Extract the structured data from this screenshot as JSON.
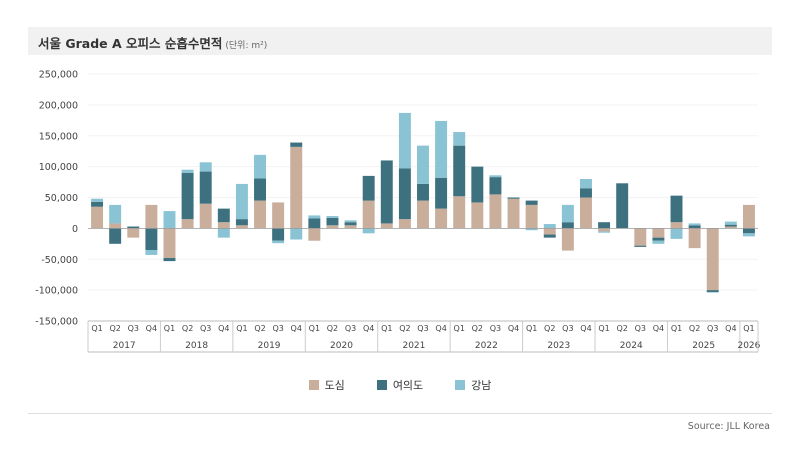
{
  "title": "서울 Grade A 오피스 순흡수면적",
  "unit_label": "(단위: m²)",
  "source": "Source: JLL Korea",
  "chart_data": {
    "type": "bar",
    "stacked": true,
    "ylim": [
      -150000,
      250000
    ],
    "y_ticks": [
      250000,
      200000,
      150000,
      100000,
      50000,
      0,
      -50000,
      -100000,
      -150000
    ],
    "y_tick_labels": [
      "250,000",
      "200,000",
      "150,000",
      "100,000",
      "50,000",
      "0",
      "-50,000",
      "-100,000",
      "-150,000"
    ],
    "grid": true,
    "legend_position": "bottom-center",
    "quarter_labels": [
      "Q1",
      "Q2",
      "Q3",
      "Q4",
      "Q1",
      "Q2",
      "Q3",
      "Q4",
      "Q1",
      "Q2",
      "Q3",
      "Q4",
      "Q1",
      "Q2",
      "Q3",
      "Q4",
      "Q1",
      "Q2",
      "Q3",
      "Q4",
      "Q1",
      "Q2",
      "Q3",
      "Q4",
      "Q1",
      "Q2",
      "Q3",
      "Q4",
      "Q1",
      "Q2",
      "Q3",
      "Q4",
      "Q1",
      "Q2",
      "Q3",
      "Q4",
      "Q1"
    ],
    "year_labels": [
      "2017",
      "2018",
      "2019",
      "2020",
      "2021",
      "2022",
      "2023",
      "2024",
      "2025",
      "2026"
    ],
    "series": [
      {
        "name": "도심",
        "color": "#c9ae9c",
        "values": [
          35000,
          8000,
          -15000,
          38000,
          -48000,
          15000,
          40000,
          10000,
          5000,
          45000,
          42000,
          132000,
          -20000,
          5000,
          5000,
          45000,
          8000,
          15000,
          45000,
          32000,
          52000,
          42000,
          55000,
          48000,
          38000,
          -10000,
          -36000,
          50000,
          -5000,
          0,
          -28000,
          -15000,
          10000,
          -32000,
          -100000,
          3000,
          38000
        ]
      },
      {
        "name": "여의도",
        "color": "#3e7180",
        "values": [
          8000,
          -25000,
          3000,
          -35000,
          -5000,
          75000,
          52000,
          22000,
          10000,
          36000,
          -20000,
          7000,
          16000,
          12000,
          5000,
          40000,
          102000,
          82000,
          27000,
          50000,
          82000,
          58000,
          28000,
          2000,
          7000,
          -5000,
          10000,
          15000,
          10000,
          73000,
          -2000,
          -5000,
          43000,
          5000,
          -3000,
          3000,
          -8000
        ]
      },
      {
        "name": "강남",
        "color": "#89c3d4",
        "values": [
          5000,
          30000,
          0,
          -8000,
          28000,
          5000,
          15000,
          -15000,
          57000,
          38000,
          -4000,
          -18000,
          5000,
          3000,
          3000,
          -8000,
          0,
          90000,
          62000,
          92000,
          22000,
          0,
          3000,
          0,
          -3000,
          7000,
          28000,
          15000,
          -2000,
          0,
          0,
          -5000,
          -17000,
          3000,
          -1000,
          5000,
          -5000
        ]
      }
    ]
  }
}
